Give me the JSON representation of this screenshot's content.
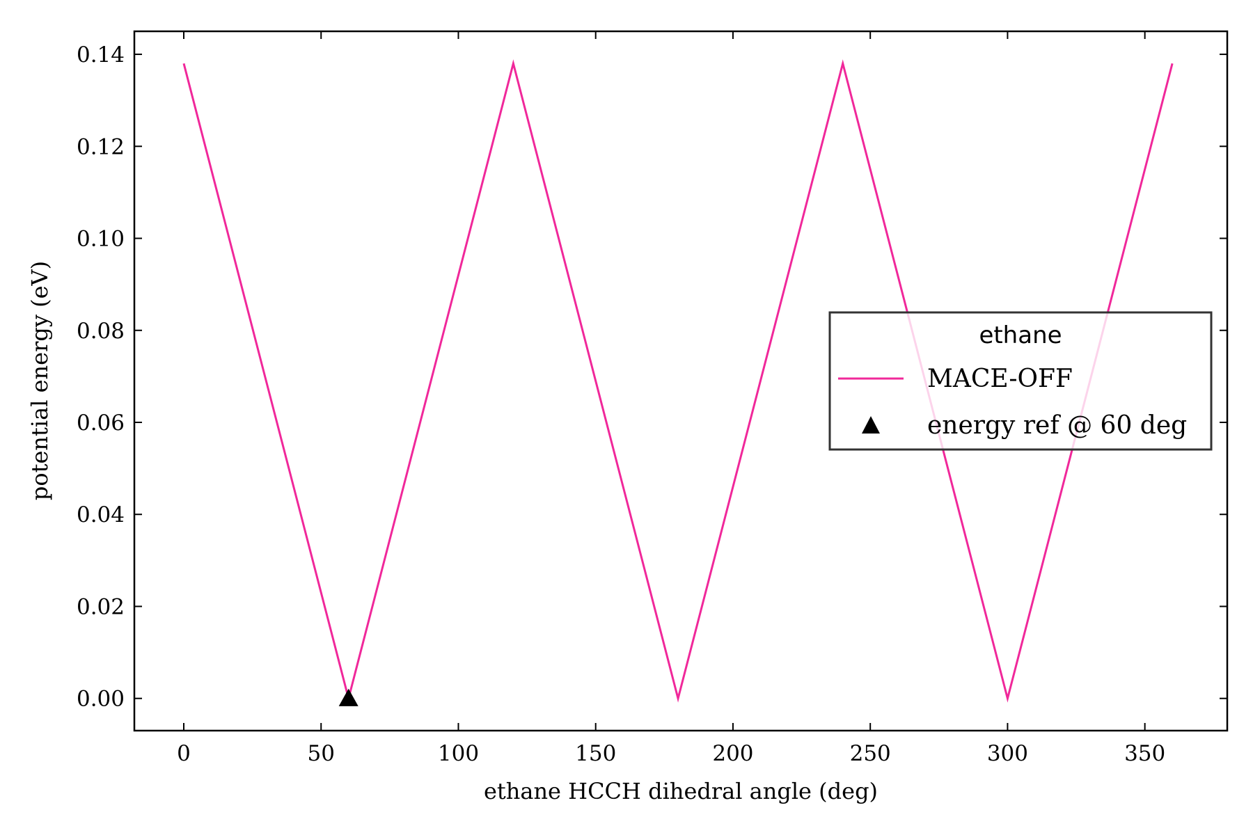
{
  "chart_data": {
    "type": "line",
    "xlabel": "ethane HCCH dihedral angle (deg)",
    "ylabel": "potential energy (eV)",
    "xlim": [
      -18,
      380
    ],
    "ylim": [
      -0.007,
      0.145
    ],
    "x_ticks": [
      0,
      50,
      100,
      150,
      200,
      250,
      300,
      350
    ],
    "x_tick_labels": [
      "0",
      "50",
      "100",
      "150",
      "200",
      "250",
      "300",
      "350"
    ],
    "y_ticks": [
      0.0,
      0.02,
      0.04,
      0.06,
      0.08,
      0.1,
      0.12,
      0.14
    ],
    "y_tick_labels": [
      "0.00",
      "0.02",
      "0.04",
      "0.06",
      "0.08",
      "0.10",
      "0.12",
      "0.14"
    ],
    "grid": false,
    "legend": {
      "title": "ethane",
      "placement": "center-right",
      "entries": [
        "MACE-OFF",
        "energy ref @ 60 deg"
      ]
    },
    "series": [
      {
        "name": "MACE-OFF",
        "kind": "line",
        "color": "#f0289a",
        "x": [
          0,
          60,
          120,
          180,
          240,
          300,
          360
        ],
        "y": [
          0.138,
          0.0,
          0.138,
          0.0,
          0.138,
          0.0,
          0.138
        ]
      },
      {
        "name": "energy ref @ 60 deg",
        "kind": "scatter",
        "marker": "triangle-up",
        "color": "#000000",
        "x": [
          60
        ],
        "y": [
          0.0
        ]
      }
    ]
  }
}
